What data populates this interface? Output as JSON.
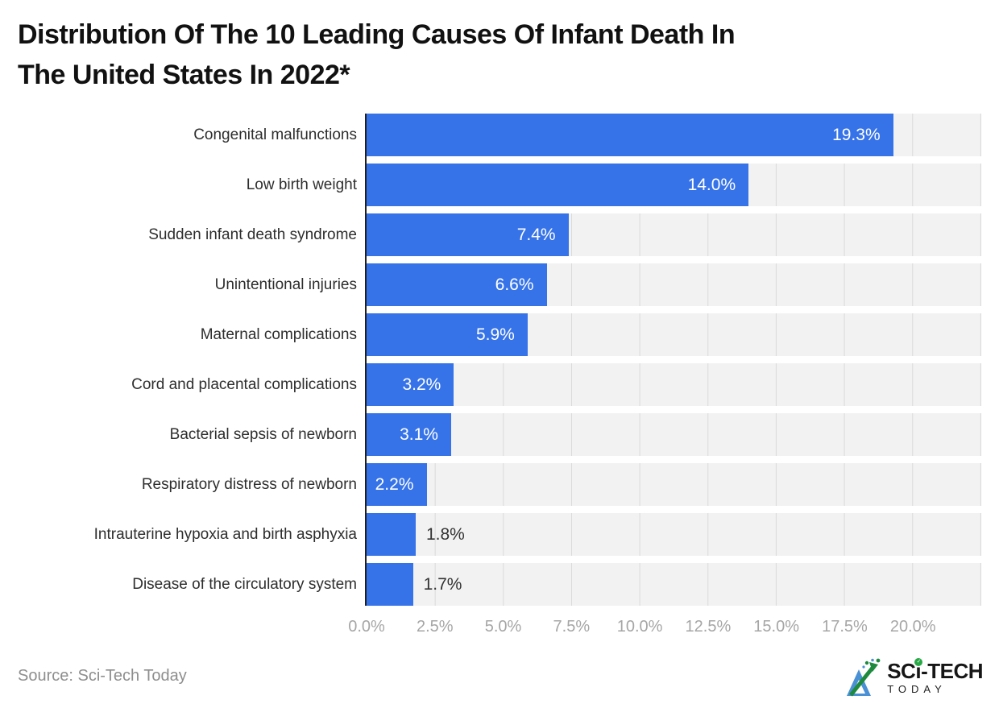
{
  "title_lines": [
    "Distribution Of The 10 Leading Causes Of Infant Death In",
    "The United States In 2022*"
  ],
  "source": "Source: Sci-Tech Today",
  "logo": {
    "word_pre": "SC",
    "word_i": "ı",
    "word_post": "-TECH",
    "check_mark": "✓",
    "sub": "TODAY"
  },
  "colors": {
    "bar": "#3673e8",
    "track": "#f2f2f2",
    "gridline": "#dadada",
    "axis": "#212121",
    "category_label": "#2e2e2e",
    "tick_label": "#a6a6a6",
    "value_inside": "#ffffff",
    "value_outside": "#333333",
    "title": "#111111",
    "source_text": "#8e8e8e",
    "logo_green": "#27a844",
    "logo_blue": "#4a90d5"
  },
  "chart_data": {
    "type": "bar",
    "orientation": "horizontal",
    "title": "Distribution Of The 10 Leading Causes Of Infant Death In The United States In 2022*",
    "categories": [
      "Congenital malfunctions",
      "Low birth weight",
      "Sudden infant death syndrome",
      "Unintentional injuries",
      "Maternal complications",
      "Cord and placental complications",
      "Bacterial sepsis of newborn",
      "Respiratory distress of newborn",
      "Intrauterine hypoxia and birth asphyxia",
      "Disease of the circulatory system"
    ],
    "values": [
      19.3,
      14.0,
      7.4,
      6.6,
      5.9,
      3.2,
      3.1,
      2.2,
      1.8,
      1.7
    ],
    "value_labels": [
      "19.3%",
      "14.0%",
      "7.4%",
      "6.6%",
      "5.9%",
      "3.2%",
      "3.1%",
      "2.2%",
      "1.8%",
      "1.7%"
    ],
    "label_inside": [
      true,
      true,
      true,
      true,
      true,
      true,
      true,
      true,
      false,
      false
    ],
    "xlabel": "",
    "ylabel": "",
    "xlim": [
      0,
      22.5
    ],
    "x_ticks": [
      "0.0%",
      "2.5%",
      "5.0%",
      "7.5%",
      "10.0%",
      "12.5%",
      "15.0%",
      "17.5%",
      "20.0%"
    ],
    "x_tick_values": [
      0,
      2.5,
      5,
      7.5,
      10,
      12.5,
      15,
      17.5,
      20
    ],
    "grid": true,
    "legend_position": "none"
  }
}
